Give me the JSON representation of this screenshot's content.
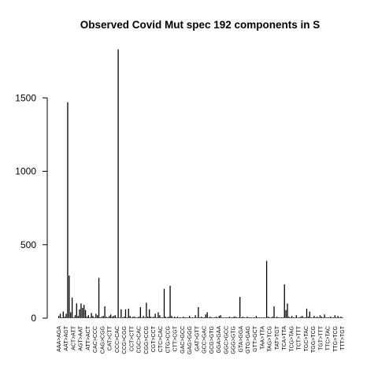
{
  "chart_data": {
    "type": "bar",
    "title": "Observed Covid Mut spec 192 components in S",
    "xlabel": "",
    "ylabel": "",
    "ylim": [
      0,
      1850
    ],
    "yticks": [
      0,
      500,
      1000,
      1500
    ],
    "bar_color": "#000000",
    "x_tick_labels": [
      "AAA>AGA",
      "AAT>AGT",
      "ACT>ATT",
      "AGT>AAT",
      "ATT>ACT",
      "CAC>CCC",
      "CAG>CGG",
      "CAT>CTT",
      "CCC>CAC",
      "CCG>CGG",
      "CCT>CTT",
      "CGC>CAC",
      "CGG>CCG",
      "CGT>CCT",
      "CTC>CAC",
      "CTG>CCG",
      "CTT>CGT",
      "GAC>GCC",
      "GAG>GGG",
      "GAT>GTT",
      "GCC>GAC",
      "GCG>GTG",
      "GGA>GAA",
      "GGC>GCC",
      "GGG>GTG",
      "GTA>GGA",
      "GTG>GAG",
      "GTT>GCT",
      "TAA>TTA",
      "TAG>TCG",
      "TAT>TGT",
      "TCA>TTA",
      "TCG>TAG",
      "TCT>TTT",
      "TGC>TAC",
      "TGG>TCG",
      "TGT>TTT",
      "TTC>TAC",
      "TTG>TCG",
      "TTT>TGT"
    ],
    "values": [
      15,
      30,
      5,
      45,
      10,
      30,
      1470,
      290,
      40,
      140,
      5,
      20,
      100,
      15,
      60,
      100,
      70,
      90,
      55,
      10,
      20,
      5,
      35,
      15,
      5,
      30,
      20,
      275,
      5,
      10,
      15,
      80,
      10,
      5,
      15,
      25,
      10,
      15,
      20,
      5,
      1830,
      5,
      60,
      5,
      10,
      60,
      5,
      65,
      15,
      5,
      10,
      10,
      5,
      5,
      10,
      75,
      5,
      15,
      5,
      105,
      10,
      60,
      10,
      5,
      10,
      30,
      5,
      40,
      20,
      5,
      5,
      200,
      10,
      5,
      10,
      220,
      15,
      5,
      10,
      5,
      10,
      5,
      5,
      5,
      10,
      5,
      5,
      5,
      15,
      5,
      5,
      5,
      20,
      5,
      75,
      5,
      10,
      5,
      5,
      25,
      40,
      5,
      10,
      5,
      5,
      5,
      10,
      5,
      15,
      20,
      5,
      5,
      5,
      5,
      5,
      10,
      5,
      5,
      10,
      10,
      5,
      5,
      145,
      5,
      10,
      5,
      5,
      10,
      5,
      5,
      5,
      5,
      5,
      15,
      5,
      5,
      5,
      5,
      5,
      5,
      390,
      10,
      5,
      5,
      10,
      80,
      5,
      10,
      5,
      5,
      5,
      5,
      230,
      55,
      100,
      10,
      5,
      15,
      5,
      5,
      20,
      5,
      5,
      10,
      15,
      5,
      5,
      65,
      10,
      45,
      5,
      5,
      15,
      5,
      10,
      5,
      20,
      10,
      5,
      25,
      5,
      5,
      5,
      10,
      5,
      5,
      20,
      5,
      15,
      5,
      10,
      5
    ]
  }
}
